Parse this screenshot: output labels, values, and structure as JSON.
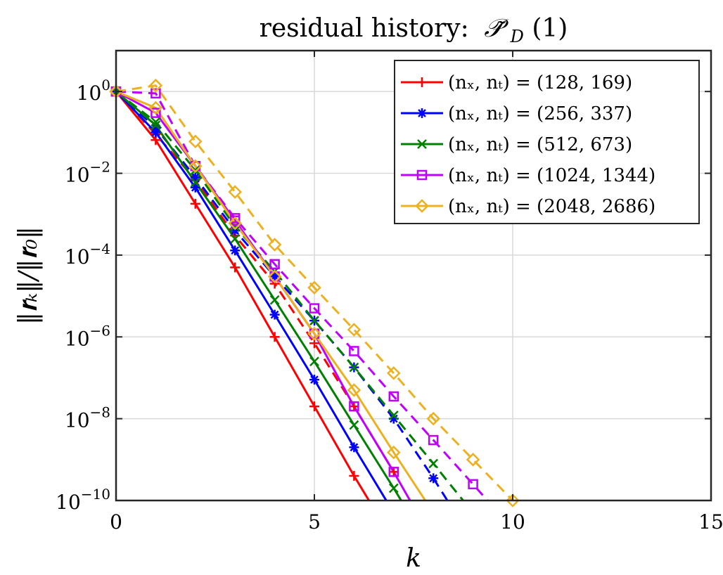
{
  "chart_data": {
    "type": "line",
    "title": "residual history: P̃_D(1)",
    "title_text": "residual history:",
    "title_math": "𝒫̃",
    "title_sub": "D",
    "title_arg": "(1)",
    "xlabel": "k",
    "ylabel": "||r_k||/||r_0||",
    "ylabel_display": "‖𝐫ₖ‖/‖𝐫₀‖",
    "xlim": [
      0,
      15
    ],
    "ylim_log10": [
      -10,
      1
    ],
    "yscale": "log",
    "grid": true,
    "legend_position": "top-right",
    "x_ticks": [
      "0",
      "5",
      "10",
      "15"
    ],
    "y_ticks": [
      {
        "base": "10",
        "exp": "0"
      },
      {
        "base": "10",
        "exp": "−2"
      },
      {
        "base": "10",
        "exp": "−4"
      },
      {
        "base": "10",
        "exp": "−6"
      },
      {
        "base": "10",
        "exp": "−8"
      },
      {
        "base": "10",
        "exp": "−10"
      }
    ],
    "series": [
      {
        "name": "(n_x, n_t) = (128, 169)",
        "legend": "(nₓ, nₜ) = (128, 169)",
        "color": "#ff0000",
        "marker": "plus",
        "solid": {
          "x": [
            0,
            1,
            2,
            3,
            4,
            5,
            6,
            7
          ],
          "y": [
            1,
            0.065,
            0.0018,
            5e-05,
            1e-06,
            2e-08,
            4e-10,
            1e-11
          ]
        },
        "dashed": {
          "x": [
            0,
            1,
            2,
            3,
            4,
            5,
            6,
            7
          ],
          "y": [
            1,
            0.09,
            0.007,
            0.0003,
            2e-05,
            7e-07,
            2e-08,
            5e-10
          ]
        }
      },
      {
        "name": "(n_x, n_t) = (256, 337)",
        "legend": "(nₓ, nₜ) = (256, 337)",
        "color": "#0000ff",
        "marker": "asterisk",
        "solid": {
          "x": [
            0,
            1,
            2,
            3,
            4,
            5,
            6,
            7
          ],
          "y": [
            1,
            0.1,
            0.0045,
            0.00013,
            3.5e-06,
            9e-08,
            2e-09,
            5e-11
          ]
        },
        "dashed": {
          "x": [
            0,
            1,
            2,
            3,
            4,
            5,
            6,
            7,
            8,
            9
          ],
          "y": [
            1,
            0.13,
            0.008,
            0.0004,
            3e-05,
            2.5e-06,
            1.8e-07,
            1e-08,
            3.5e-10,
            1e-11
          ]
        }
      },
      {
        "name": "(n_x, n_t) = (512, 673)",
        "legend": "(nₓ, nₜ) = (512, 673)",
        "color": "#008000",
        "marker": "cross",
        "solid": {
          "x": [
            0,
            1,
            2,
            3,
            4,
            5,
            6,
            7,
            8
          ],
          "y": [
            1,
            0.15,
            0.006,
            0.00025,
            8e-06,
            2.5e-07,
            7e-09,
            2e-10,
            5e-12
          ]
        },
        "dashed": {
          "x": [
            0,
            1,
            2,
            3,
            4,
            5,
            6,
            7,
            8,
            9
          ],
          "y": [
            1,
            0.18,
            0.012,
            0.0005,
            4e-05,
            2.5e-06,
            1.8e-07,
            1.2e-08,
            8e-10,
            5e-11
          ]
        }
      },
      {
        "name": "(n_x, n_t) = (1024, 1344)",
        "legend": "(nₓ, nₜ) = (1024, 1344)",
        "color": "#bf00ff",
        "marker": "square",
        "solid": {
          "x": [
            0,
            1,
            2,
            3,
            4,
            5,
            6,
            7,
            8
          ],
          "y": [
            1,
            0.3,
            0.015,
            0.0007,
            3e-05,
            1.2e-06,
            2e-08,
            5e-10,
            1e-11
          ]
        },
        "dashed": {
          "x": [
            0,
            1,
            2,
            3,
            4,
            5,
            6,
            7,
            8,
            9,
            10
          ],
          "y": [
            1,
            0.9,
            0.015,
            0.0008,
            6e-05,
            5e-06,
            4.5e-07,
            3.5e-08,
            3e-09,
            2.5e-10,
            2e-11
          ]
        }
      },
      {
        "name": "(n_x, n_t) = (2048, 2686)",
        "legend": "(nₓ, nₜ) = (2048, 2686)",
        "color": "#edb120",
        "marker": "diamond",
        "solid": {
          "x": [
            0,
            1,
            2,
            3,
            4,
            5,
            6,
            7,
            8
          ],
          "y": [
            1,
            0.4,
            0.015,
            0.0006,
            3e-05,
            1.2e-06,
            5e-08,
            1.5e-09,
            5e-11
          ]
        },
        "dashed": {
          "x": [
            0,
            1,
            2,
            3,
            4,
            5,
            6,
            7,
            8,
            9,
            10
          ],
          "y": [
            1,
            1.4,
            0.06,
            0.0035,
            0.00018,
            1.6e-05,
            1.5e-06,
            1.3e-07,
            1e-08,
            1e-09,
            1e-10
          ]
        }
      }
    ]
  }
}
